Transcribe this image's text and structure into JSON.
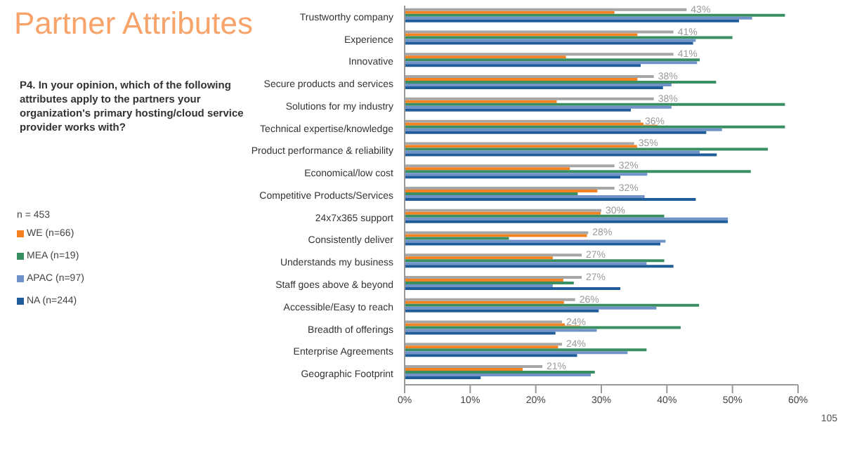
{
  "chart_data": {
    "type": "bar",
    "orientation": "horizontal",
    "title": "Partner Attributes",
    "subtitle": "P4.  In your opinion, which of the following attributes apply to the partners your organization's primary hosting/cloud service provider works with?",
    "categories": [
      "Trustworthy company",
      "Experience",
      "Innovative",
      "Secure products and services",
      "Solutions for my industry",
      "Technical expertise/knowledge",
      "Product performance & reliability",
      "Economical/low cost",
      "Competitive Products/Services",
      "24x7x365 support",
      "Consistently deliver",
      "Understands my business",
      "Staff goes above & beyond",
      "Accessible/Easy to reach",
      "Breadth of offerings",
      "Enterprise Agreements",
      "Geographic Footprint"
    ],
    "series": [
      {
        "color": "#a6a6a6",
        "values": [
          43,
          41,
          41,
          38,
          38,
          36,
          35,
          32,
          32,
          30,
          28,
          27,
          27,
          26,
          24,
          24,
          21
        ],
        "value_labels": [
          "43%",
          "41%",
          "41%",
          "38%",
          "38%",
          "36%",
          "35%",
          "32%",
          "32%",
          "30%",
          "28%",
          "27%",
          "27%",
          "26%",
          "24%",
          "24%",
          "21%"
        ]
      },
      {
        "name": "WE (n=66)",
        "color": "#f58220",
        "values": [
          32,
          35.5,
          24.6,
          35.5,
          23.2,
          38.6,
          35.5,
          25.2,
          29.4,
          29.9,
          27.8,
          22.6,
          24.2,
          24.3,
          26.8,
          23.4,
          18
        ]
      },
      {
        "name": "MEA (n=19)",
        "color": "#3a8f62",
        "values": [
          58,
          50,
          45,
          47.5,
          58,
          58,
          55.4,
          52.8,
          26.4,
          39.6,
          15.9,
          39.6,
          25.8,
          44.9,
          42.1,
          36.9,
          29
        ]
      },
      {
        "name": "APAC (n=97)",
        "color": "#6f93c8",
        "values": [
          53,
          44.4,
          44.6,
          40.7,
          40.7,
          48.4,
          45,
          37,
          36.6,
          49.3,
          39.8,
          36.9,
          22.6,
          38.4,
          29.3,
          34,
          28.4
        ]
      },
      {
        "name": "NA (n=244)",
        "color": "#1f5c99",
        "values": [
          51,
          44,
          36,
          39.4,
          34.5,
          46,
          47.6,
          32.9,
          44.4,
          49.3,
          39,
          41,
          32.9,
          29.6,
          23,
          26.3,
          11.6
        ]
      }
    ],
    "xlim": [
      0,
      60
    ],
    "xticks": [
      {
        "value": 0,
        "label": "0%"
      },
      {
        "value": 10,
        "label": "10%"
      },
      {
        "value": 20,
        "label": "20%"
      },
      {
        "value": 30,
        "label": "30%"
      },
      {
        "value": 40,
        "label": "40%"
      },
      {
        "value": 50,
        "label": "50%"
      },
      {
        "value": 60,
        "label": "60%"
      }
    ],
    "legend": "left",
    "grid": false,
    "annotations": [
      "n = 453",
      "105"
    ]
  }
}
